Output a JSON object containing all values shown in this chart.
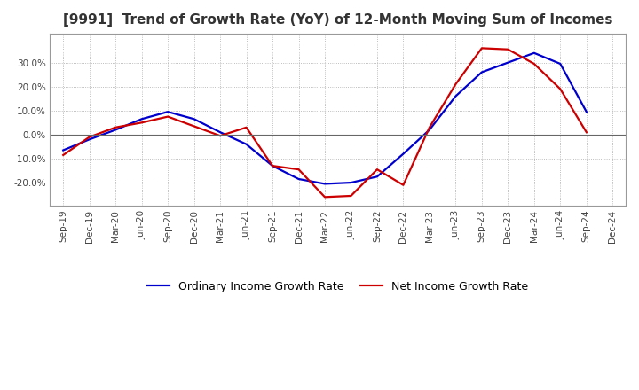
{
  "title": "[9991]  Trend of Growth Rate (YoY) of 12-Month Moving Sum of Incomes",
  "title_fontsize": 11,
  "background_color": "#ffffff",
  "grid_color": "#aaaaaa",
  "x_labels": [
    "Sep-19",
    "Dec-19",
    "Mar-20",
    "Jun-20",
    "Sep-20",
    "Dec-20",
    "Mar-21",
    "Jun-21",
    "Sep-21",
    "Dec-21",
    "Mar-22",
    "Jun-22",
    "Sep-22",
    "Dec-22",
    "Mar-23",
    "Jun-23",
    "Sep-23",
    "Dec-23",
    "Mar-24",
    "Jun-24",
    "Sep-24",
    "Dec-24"
  ],
  "ordinary_income": [
    -0.065,
    -0.02,
    0.02,
    0.065,
    0.095,
    0.065,
    0.01,
    -0.04,
    -0.13,
    -0.185,
    -0.205,
    -0.2,
    -0.175,
    -0.08,
    0.02,
    0.16,
    0.26,
    0.3,
    0.34,
    0.295,
    0.095,
    null
  ],
  "net_income": [
    -0.085,
    -0.01,
    0.03,
    0.05,
    0.075,
    0.035,
    -0.005,
    0.03,
    -0.13,
    -0.145,
    -0.26,
    -0.255,
    -0.145,
    -0.21,
    0.03,
    0.21,
    0.36,
    0.355,
    0.295,
    0.19,
    0.01,
    null
  ],
  "ordinary_color": "#0000cc",
  "net_color": "#cc0000",
  "line_width": 1.6,
  "ylim": [
    -0.295,
    0.42
  ],
  "yticks": [
    -0.2,
    -0.1,
    0.0,
    0.1,
    0.2,
    0.3
  ],
  "legend_ordinary": "Ordinary Income Growth Rate",
  "legend_net": "Net Income Growth Rate",
  "tick_labelsize": 7.5,
  "legend_fontsize": 9
}
